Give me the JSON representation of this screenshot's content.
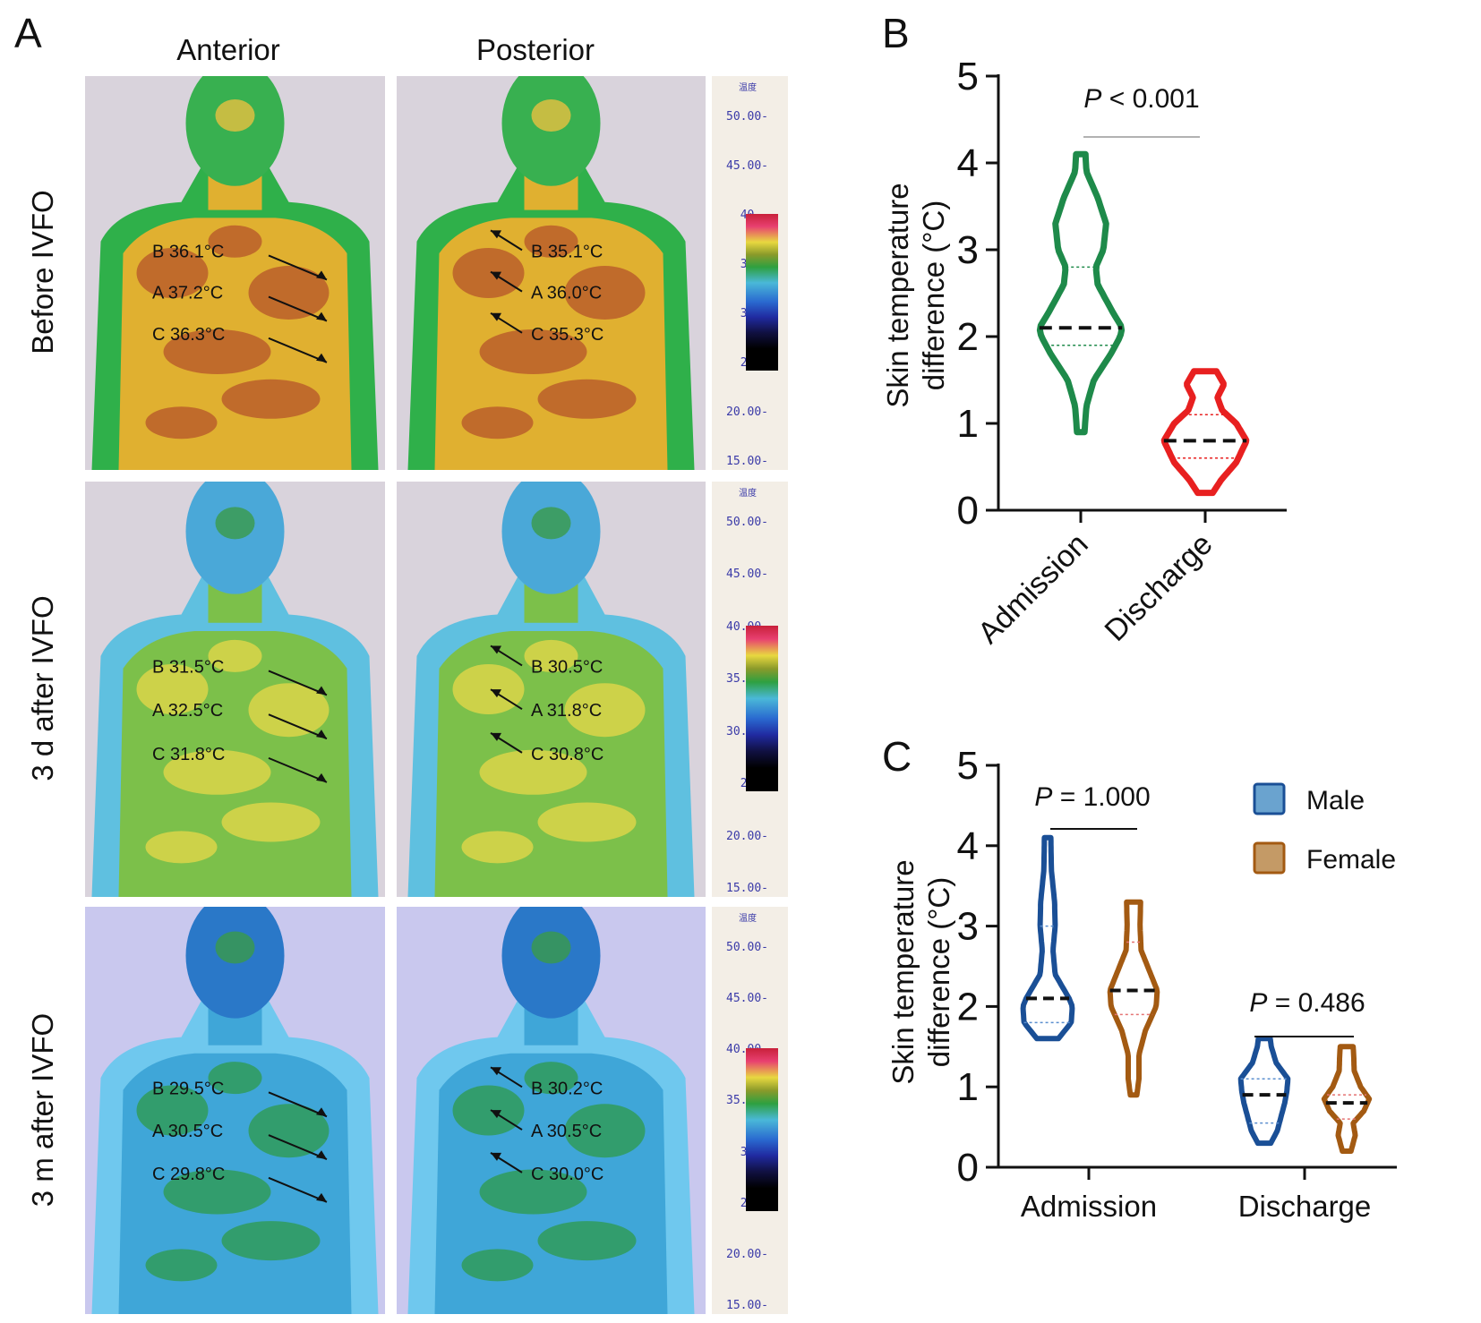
{
  "panel_a": {
    "letter": "A",
    "columns": [
      "Anterior",
      "Posterior"
    ],
    "rows": [
      {
        "label": "Before IVFO",
        "anterior": [
          {
            "pt": "B",
            "temp": "36.1°C"
          },
          {
            "pt": "A",
            "temp": "37.2°C"
          },
          {
            "pt": "C",
            "temp": "36.3°C"
          }
        ],
        "posterior": [
          {
            "pt": "B",
            "temp": "35.1°C"
          },
          {
            "pt": "A",
            "temp": "36.0°C"
          },
          {
            "pt": "C",
            "temp": "35.3°C"
          }
        ],
        "scale_ticks": [
          "50.00",
          "45.00",
          "40.",
          "35.",
          "30.",
          "25.",
          "20.00",
          "15.00"
        ],
        "scale_top": "温度",
        "warmth": 0.85
      },
      {
        "label": "3 d after IVFO",
        "anterior": [
          {
            "pt": "B",
            "temp": "31.5°C"
          },
          {
            "pt": "A",
            "temp": "32.5°C"
          },
          {
            "pt": "C",
            "temp": "31.8°C"
          }
        ],
        "posterior": [
          {
            "pt": "B",
            "temp": "30.5°C"
          },
          {
            "pt": "A",
            "temp": "31.8°C"
          },
          {
            "pt": "C",
            "temp": "30.8°C"
          }
        ],
        "scale_ticks": [
          "50.00",
          "45.00",
          "40.00",
          "35.00",
          "30.00",
          "25.",
          "20.00",
          "15.00"
        ],
        "scale_top": "温度",
        "warmth": 0.5
      },
      {
        "label": "3 m after IVFO",
        "anterior": [
          {
            "pt": "B",
            "temp": "29.5°C"
          },
          {
            "pt": "A",
            "temp": "30.5°C"
          },
          {
            "pt": "C",
            "temp": "29.8°C"
          }
        ],
        "posterior": [
          {
            "pt": "B",
            "temp": "30.2°C"
          },
          {
            "pt": "A",
            "temp": "30.5°C"
          },
          {
            "pt": "C",
            "temp": "30.0°C"
          }
        ],
        "scale_ticks": [
          "50.00",
          "45.00",
          "40.00",
          "35.00",
          "30.",
          "25.",
          "20.00",
          "15.00"
        ],
        "scale_top": "温度",
        "warmth": 0.25
      }
    ]
  },
  "chart_data": [
    {
      "panel": "B",
      "type": "violin",
      "ylabel_line1": "Skin temperature",
      "ylabel_line2": "difference (°C)",
      "ylim": [
        0,
        5
      ],
      "yticks": [
        "0",
        "1",
        "2",
        "3",
        "4",
        "5"
      ],
      "categories": [
        "Admission",
        "Discharge"
      ],
      "series": [
        {
          "category": "Admission",
          "color": "#1e8a4a",
          "min": 0.9,
          "max": 4.1,
          "median": 2.1,
          "q1": 1.9,
          "q3": 2.8,
          "density": [
            [
              0.9,
              0.04
            ],
            [
              1.2,
              0.06
            ],
            [
              1.5,
              0.14
            ],
            [
              1.8,
              0.32
            ],
            [
              2.0,
              0.42
            ],
            [
              2.1,
              0.44
            ],
            [
              2.3,
              0.33
            ],
            [
              2.6,
              0.18
            ],
            [
              2.8,
              0.16
            ],
            [
              3.0,
              0.24
            ],
            [
              3.3,
              0.27
            ],
            [
              3.6,
              0.18
            ],
            [
              3.9,
              0.06
            ],
            [
              4.1,
              0.05
            ]
          ]
        },
        {
          "category": "Discharge",
          "color": "#e82020",
          "min": 0.2,
          "max": 1.6,
          "median": 0.8,
          "q1": 0.6,
          "q3": 1.1,
          "density": [
            [
              0.2,
              0.08
            ],
            [
              0.35,
              0.17
            ],
            [
              0.55,
              0.33
            ],
            [
              0.8,
              0.44
            ],
            [
              1.0,
              0.33
            ],
            [
              1.15,
              0.18
            ],
            [
              1.3,
              0.13
            ],
            [
              1.45,
              0.2
            ],
            [
              1.6,
              0.12
            ]
          ]
        }
      ],
      "annotation": {
        "italic": "P",
        "text": " < 0.001"
      }
    },
    {
      "panel": "C",
      "type": "violin",
      "ylabel_line1": "Skin temperature",
      "ylabel_line2": "difference (°C)",
      "ylim": [
        0,
        5
      ],
      "yticks": [
        "0",
        "1",
        "2",
        "3",
        "4",
        "5"
      ],
      "categories": [
        "Admission",
        "Discharge"
      ],
      "legend": [
        {
          "name": "Male",
          "color": "#1a4f96",
          "fill": "#6aa3cf"
        },
        {
          "name": "Female",
          "color": "#a35a12",
          "fill": "#c49a66"
        }
      ],
      "series": [
        {
          "category": "Admission",
          "group": "Male",
          "color": "#1a4f96",
          "qcolor": "#5b8fcf",
          "min": 1.6,
          "max": 4.1,
          "median": 2.1,
          "q1": 1.8,
          "q3": 3.0,
          "density": [
            [
              1.6,
              0.2
            ],
            [
              1.8,
              0.44
            ],
            [
              2.0,
              0.46
            ],
            [
              2.1,
              0.4
            ],
            [
              2.4,
              0.14
            ],
            [
              2.7,
              0.1
            ],
            [
              3.0,
              0.14
            ],
            [
              3.3,
              0.13
            ],
            [
              3.7,
              0.07
            ],
            [
              4.1,
              0.06
            ]
          ]
        },
        {
          "category": "Admission",
          "group": "Female",
          "color": "#a35a12",
          "qcolor": "#e57373",
          "min": 0.9,
          "max": 3.3,
          "median": 2.2,
          "q1": 1.9,
          "q3": 2.8,
          "density": [
            [
              0.9,
              0.06
            ],
            [
              1.1,
              0.1
            ],
            [
              1.4,
              0.1
            ],
            [
              1.7,
              0.22
            ],
            [
              2.0,
              0.42
            ],
            [
              2.2,
              0.44
            ],
            [
              2.4,
              0.32
            ],
            [
              2.7,
              0.14
            ],
            [
              3.0,
              0.12
            ],
            [
              3.3,
              0.13
            ]
          ]
        },
        {
          "category": "Discharge",
          "group": "Male",
          "color": "#1a4f96",
          "qcolor": "#5b8fcf",
          "min": 0.3,
          "max": 1.6,
          "median": 0.9,
          "q1": 0.55,
          "q3": 1.1,
          "density": [
            [
              0.3,
              0.12
            ],
            [
              0.45,
              0.24
            ],
            [
              0.6,
              0.3
            ],
            [
              0.8,
              0.38
            ],
            [
              0.95,
              0.42
            ],
            [
              1.1,
              0.44
            ],
            [
              1.3,
              0.22
            ],
            [
              1.5,
              0.13
            ],
            [
              1.6,
              0.11
            ]
          ]
        },
        {
          "category": "Discharge",
          "group": "Female",
          "color": "#a35a12",
          "qcolor": "#e57373",
          "min": 0.2,
          "max": 1.5,
          "median": 0.8,
          "q1": 0.6,
          "q3": 0.9,
          "density": [
            [
              0.2,
              0.08
            ],
            [
              0.4,
              0.16
            ],
            [
              0.55,
              0.12
            ],
            [
              0.7,
              0.32
            ],
            [
              0.85,
              0.42
            ],
            [
              1.0,
              0.26
            ],
            [
              1.2,
              0.14
            ],
            [
              1.4,
              0.13
            ],
            [
              1.5,
              0.12
            ]
          ]
        }
      ],
      "annotations": [
        {
          "category": "Admission",
          "italic": "P",
          "text": " = 1.000"
        },
        {
          "category": "Discharge",
          "italic": "P",
          "text": " = 0.486"
        }
      ]
    }
  ]
}
